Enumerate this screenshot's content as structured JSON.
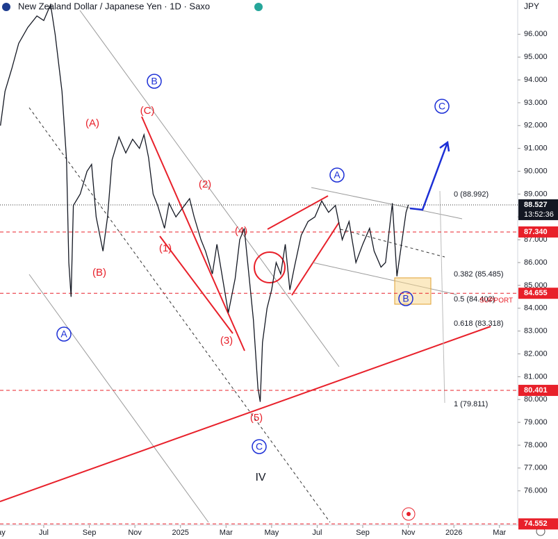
{
  "chart_data": {
    "type": "line",
    "title": "New Zealand Dollar / Japanese Yen · 1D · Saxo",
    "currency": "JPY",
    "x": [
      4.1,
      4.3,
      4.6,
      4.9,
      5.3,
      5.7,
      6.0,
      6.3,
      6.5,
      6.8,
      7.0,
      7.1,
      7.2,
      7.3,
      7.6,
      7.9,
      8.1,
      8.3,
      8.6,
      8.8,
      9.0,
      9.3,
      9.6,
      9.9,
      10.2,
      10.4,
      10.6,
      10.8,
      11.0,
      11.3,
      11.5,
      11.8,
      12.1,
      12.4,
      12.6,
      12.9,
      13.1,
      13.4,
      13.6,
      13.9,
      14.1,
      14.4,
      14.6,
      14.8,
      15.0,
      15.2,
      15.4,
      15.5,
      15.6,
      15.8,
      16.0,
      16.2,
      16.4,
      16.6,
      16.8,
      17.0,
      17.3,
      17.6,
      17.9,
      18.2,
      18.5,
      18.8,
      19.1,
      19.4,
      19.7,
      20.0,
      20.3,
      20.5,
      20.8,
      21.0,
      21.3,
      21.5,
      21.7,
      21.9,
      22.0
    ],
    "series": [
      {
        "name": "NZDJPY",
        "color": "#131722",
        "values": [
          92.0,
          93.5,
          94.5,
          95.6,
          96.3,
          96.8,
          96.6,
          97.3,
          96.0,
          93.5,
          90.5,
          86.0,
          84.5,
          88.5,
          89.0,
          90.0,
          90.3,
          88.0,
          86.5,
          88.0,
          90.5,
          91.5,
          90.8,
          91.4,
          91.0,
          91.6,
          90.6,
          89.0,
          88.5,
          87.5,
          88.6,
          88.0,
          88.4,
          88.8,
          88.0,
          87.0,
          86.5,
          85.5,
          86.8,
          85.0,
          83.8,
          85.3,
          87.0,
          87.5,
          85.5,
          83.5,
          80.5,
          79.9,
          82.5,
          84.0,
          84.8,
          86.0,
          85.5,
          86.8,
          84.8,
          85.8,
          87.2,
          87.8,
          88.0,
          88.7,
          88.2,
          88.5,
          87.0,
          87.8,
          86.0,
          86.8,
          87.5,
          86.5,
          85.8,
          86.0,
          88.6,
          85.4,
          86.8,
          88.2,
          88.527
        ]
      }
    ],
    "xlim": [
      4.08,
      26.8
    ],
    "xticks": [
      {
        "value": 4,
        "label": "May"
      },
      {
        "value": 6,
        "label": "Jul"
      },
      {
        "value": 8,
        "label": "Sep"
      },
      {
        "value": 10,
        "label": "Nov"
      },
      {
        "value": 12,
        "label": "2025"
      },
      {
        "value": 14,
        "label": "Mar"
      },
      {
        "value": 16,
        "label": "May"
      },
      {
        "value": 18,
        "label": "Jul"
      },
      {
        "value": 20,
        "label": "Sep"
      },
      {
        "value": 22,
        "label": "Nov"
      },
      {
        "value": 24,
        "label": "2026"
      },
      {
        "value": 26,
        "label": "Mar"
      }
    ],
    "ylim": [
      74.5,
      97.5
    ],
    "yticks": [
      {
        "value": 76,
        "label": "76.000"
      },
      {
        "value": 77,
        "label": "77.000"
      },
      {
        "value": 78,
        "label": "78.000"
      },
      {
        "value": 79,
        "label": "79.000"
      },
      {
        "value": 80,
        "label": "80.000"
      },
      {
        "value": 81,
        "label": "81.000"
      },
      {
        "value": 82,
        "label": "82.000"
      },
      {
        "value": 83,
        "label": "83.000"
      },
      {
        "value": 84,
        "label": "84.000"
      },
      {
        "value": 85,
        "label": "85.000"
      },
      {
        "value": 86,
        "label": "86.000"
      },
      {
        "value": 87,
        "label": "87.000"
      },
      {
        "value": 88,
        "label": "88.000"
      },
      {
        "value": 89,
        "label": "89.000"
      },
      {
        "value": 90,
        "label": "90.000"
      },
      {
        "value": 91,
        "label": "91.000"
      },
      {
        "value": 92,
        "label": "92.000"
      },
      {
        "value": 93,
        "label": "93.000"
      },
      {
        "value": 94,
        "label": "94.000"
      },
      {
        "value": 95,
        "label": "95.000"
      },
      {
        "value": 96,
        "label": "96.000"
      }
    ],
    "levels": [
      {
        "value": 87.34,
        "label": "87.340"
      },
      {
        "value": 84.655,
        "label": "84.655"
      },
      {
        "value": 80.401,
        "label": "80.401"
      },
      {
        "value": 74.552,
        "label": "74.552"
      }
    ],
    "last_price": {
      "value": 88.527,
      "label": "88.527"
    },
    "countdown": "13:52:36",
    "fib_labels": [
      "0 (88.992)",
      "0.382 (85.485)",
      "0.5 (84.402)",
      "0.618 (83.318)",
      "1 (79.811)"
    ],
    "support_label": "SUPPORT",
    "wave_labels": [
      "(A)",
      "(B)",
      "(C)",
      "(1)",
      "(2)",
      "(3)",
      "(4)",
      "(5)"
    ],
    "circled_labels": [
      "A",
      "B",
      "C",
      "A",
      "B",
      "C"
    ],
    "degree_label": "IV"
  }
}
